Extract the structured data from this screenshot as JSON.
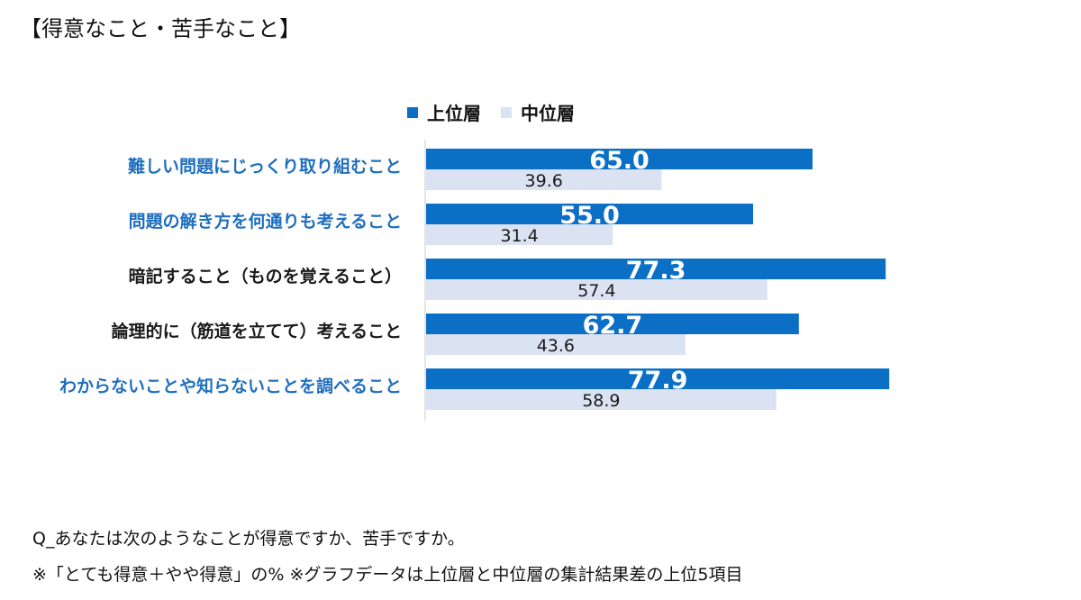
{
  "page": {
    "title": "【得意なこと・苦手なこと】",
    "question": "Q_あなたは次のようなことが得意ですか、苦手ですか。",
    "note": "※「とても得意＋やや得意」の%  ※グラフデータは上位層と中位層の集計結果差の上位5項目"
  },
  "chart_data": {
    "type": "bar",
    "orientation": "horizontal",
    "title": "",
    "xlabel": "",
    "ylabel": "",
    "xlim": [
      0,
      100
    ],
    "grid": false,
    "legend_position": "top",
    "categories": [
      "難しい問題にじっくり取り組むこと",
      "問題の解き方を何通りも考えること",
      "暗記すること（ものを覚えること）",
      "論理的に（筋道を立てて）考えること",
      "わからないことや知らないことを調べること"
    ],
    "category_colors": [
      "#1f6fbf",
      "#1f6fbf",
      "#1a1a1a",
      "#1a1a1a",
      "#1f6fbf"
    ],
    "series": [
      {
        "name": "上位層",
        "color": "#0b6fc6",
        "values": [
          65.0,
          55.0,
          77.3,
          62.7,
          77.9
        ],
        "labels": [
          "65.0",
          "55.0",
          "77.3",
          "62.7",
          "77.9"
        ]
      },
      {
        "name": "中位層",
        "color": "#dbe2f2",
        "values": [
          39.6,
          31.4,
          57.4,
          43.6,
          58.9
        ],
        "labels": [
          "39.6",
          "31.4",
          "57.4",
          "43.6",
          "58.9"
        ]
      }
    ]
  }
}
